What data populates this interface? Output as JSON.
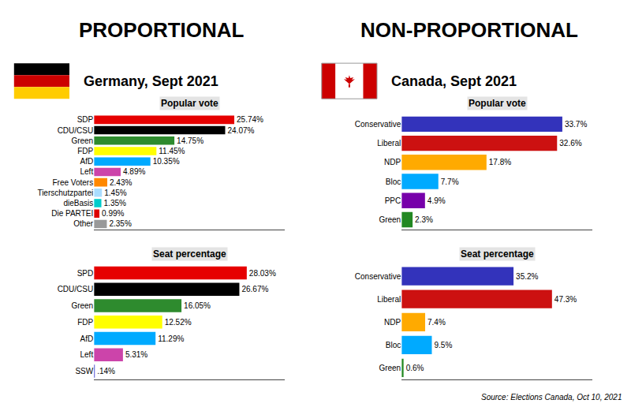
{
  "chart_data": [
    {
      "type": "bar",
      "orientation": "horizontal",
      "title": "Popular vote",
      "subtitle": "Germany, Sept 2021",
      "annotations": [
        "PROPORTIONAL"
      ],
      "categories": [
        "SDP",
        "CDU/CSU",
        "Green",
        "FDP",
        "AfD",
        "Left",
        "Free Voters",
        "Tierschutzpartei",
        "dieBasis",
        "Die PARTEI",
        "Other"
      ],
      "values": [
        25.74,
        24.07,
        14.75,
        11.45,
        10.35,
        4.89,
        2.43,
        1.45,
        1.35,
        0.99,
        2.35
      ],
      "value_labels": [
        "25.74%",
        "24.07%",
        "14.75%",
        "11.45%",
        "10.35%",
        "4.89%",
        "2.43%",
        "1.45%",
        "1.35%",
        "0.99%",
        "2.35%"
      ],
      "colors": [
        "#e60000",
        "#000000",
        "#2e8b2e",
        "#ffff00",
        "#00aaff",
        "#cc44aa",
        "#ff8800",
        "#aaddff",
        "#00cccc",
        "#dd0000",
        "#999999"
      ],
      "xlim": [
        0,
        35
      ],
      "grid": false,
      "tick_labels": "y",
      "data_labels": true
    },
    {
      "type": "bar",
      "orientation": "horizontal",
      "title": "Seat percentage",
      "categories": [
        "SPD",
        "CDU/CSU",
        "Green",
        "FDP",
        "AfD",
        "Left",
        "SSW"
      ],
      "values": [
        28.03,
        26.67,
        16.05,
        12.52,
        11.29,
        5.31,
        0.14
      ],
      "value_labels": [
        "28.03%",
        "26.67%",
        "16.05%",
        "12.52%",
        "11.29%",
        "5.31%",
        ".14%"
      ],
      "colors": [
        "#e60000",
        "#000000",
        "#2e8b2e",
        "#ffff00",
        "#00aaff",
        "#cc44aa",
        "#3333cc"
      ],
      "xlim": [
        0,
        35
      ],
      "grid": false,
      "tick_labels": "y",
      "data_labels": true
    },
    {
      "type": "bar",
      "orientation": "horizontal",
      "title": "Popular vote",
      "subtitle": "Canada, Sept 2021",
      "annotations": [
        "NON-PROPORTIONAL"
      ],
      "categories": [
        "Conservative",
        "Liberal",
        "NDP",
        "Bloc",
        "PPC",
        "Green"
      ],
      "values": [
        33.7,
        32.6,
        17.8,
        7.7,
        4.9,
        2.3
      ],
      "value_labels": [
        "33.7%",
        "32.6%",
        "17.8%",
        "7.7%",
        "4.9%",
        "2.3%"
      ],
      "colors": [
        "#3333bb",
        "#cc1111",
        "#ffaa00",
        "#00aaff",
        "#7700aa",
        "#228822"
      ],
      "xlim": [
        0,
        40
      ],
      "grid": false,
      "tick_labels": "y",
      "data_labels": true
    },
    {
      "type": "bar",
      "orientation": "horizontal",
      "title": "Seat percentage",
      "annotations": [
        "Source: Elections Canada, Oct 10, 2021"
      ],
      "categories": [
        "Conservative",
        "Liberal",
        "NDP",
        "Bloc",
        "Green"
      ],
      "values": [
        35.2,
        47.3,
        7.4,
        9.5,
        0.6
      ],
      "value_labels": [
        "35.2%",
        "47.3%",
        "7.4%",
        "9.5%",
        "0.6%"
      ],
      "colors": [
        "#3333bb",
        "#cc1111",
        "#ffaa00",
        "#00aaff",
        "#228822"
      ],
      "xlim": [
        0,
        60
      ],
      "grid": false,
      "tick_labels": "y",
      "data_labels": true
    }
  ]
}
